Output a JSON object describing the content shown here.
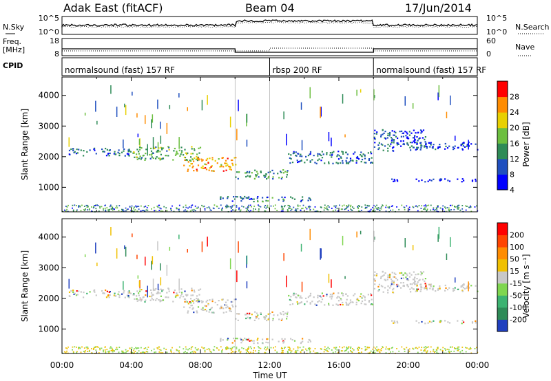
{
  "header": {
    "station": "Adak East (fitACF)",
    "beam": "Beam 04",
    "date": "17/Jun/2014"
  },
  "top_panels": {
    "nsky_label": "N.Sky",
    "nsearch_label": "N.Search",
    "freq_label_line1": "Freq.",
    "freq_label_line2": "[MHz]",
    "nave_label": "Nave",
    "cpid_label": "CPID",
    "noise_ticks": [
      "10^5",
      "10^0"
    ],
    "freq_ticks": [
      "18",
      "8"
    ],
    "nave_ticks": [
      "60",
      "0"
    ]
  },
  "cpid_modes": [
    {
      "label": "normalsound (fast) 157 RF",
      "start_hour": 0
    },
    {
      "label": "rbsp 200 RF",
      "start_hour": 12
    },
    {
      "label": "normalsound (fast) 157 RF",
      "start_hour": 18
    }
  ],
  "x_axis": {
    "label": "Time UT",
    "ticks": [
      "00:00",
      "04:00",
      "08:00",
      "12:00",
      "16:00",
      "20:00",
      "00:00"
    ],
    "range_hours": [
      0,
      24
    ]
  },
  "power_panel": {
    "ylabel": "Slant Range [km]",
    "yticks": [
      "4000",
      "3000",
      "2000",
      "1000"
    ],
    "colorbar_label": "Power [dB]",
    "colorbar_ticks": [
      "28",
      "24",
      "20",
      "16",
      "12",
      "8",
      "4"
    ],
    "colors": [
      "#0000ff",
      "#1f4fbf",
      "#2e8b57",
      "#6cbf3f",
      "#e8d000",
      "#ff8c00",
      "#ff0000"
    ]
  },
  "velocity_panel": {
    "ylabel": "Slant Range [km]",
    "yticks": [
      "4000",
      "3000",
      "2000",
      "1000"
    ],
    "colorbar_label": "Velocity [m s⁻¹]",
    "colorbar_ticks": [
      "200",
      "100",
      "50",
      "15",
      "-15",
      "-50",
      "-100",
      "-200"
    ],
    "colors": [
      "#1f3fbf",
      "#2e8b57",
      "#3cb371",
      "#7fd64f",
      "#c8c8c8",
      "#f0c000",
      "#ff8c00",
      "#ff4500",
      "#ff0000"
    ]
  },
  "chart_data": {
    "type": "heatmap",
    "x_unit": "hours UT",
    "y_unit": "km",
    "yrange": [
      200,
      4600
    ],
    "frequency_segments": [
      {
        "start_hour": 0,
        "end_hour": 10,
        "freq_mhz": 12
      },
      {
        "start_hour": 10,
        "end_hour": 18,
        "freq_mhz": 10
      },
      {
        "start_hour": 18,
        "end_hour": 24,
        "freq_mhz": 12
      }
    ],
    "echo_bands": [
      {
        "start_hour": 0.3,
        "end_hour": 4,
        "range_km": [
          2050,
          2300
        ],
        "power_db": 9
      },
      {
        "start_hour": 4,
        "end_hour": 8,
        "range_km": [
          1900,
          2350
        ],
        "power_db": 14
      },
      {
        "start_hour": 7,
        "end_hour": 10,
        "range_km": [
          1550,
          2000
        ],
        "power_db": 22
      },
      {
        "start_hour": 10,
        "end_hour": 13,
        "range_km": [
          1300,
          1600
        ],
        "power_db": 12
      },
      {
        "start_hour": 13,
        "end_hour": 18,
        "range_km": [
          1800,
          2200
        ],
        "power_db": 9
      },
      {
        "start_hour": 9,
        "end_hour": 14.5,
        "range_km": [
          550,
          720
        ],
        "power_db": 10
      },
      {
        "start_hour": 18,
        "end_hour": 21,
        "range_km": [
          2200,
          2900
        ],
        "power_db": 8
      },
      {
        "start_hour": 20,
        "end_hour": 24,
        "range_km": [
          2250,
          2500
        ],
        "power_db": 7
      },
      {
        "start_hour": 19,
        "end_hour": 24,
        "range_km": [
          1200,
          1300
        ],
        "power_db": 5
      }
    ]
  }
}
